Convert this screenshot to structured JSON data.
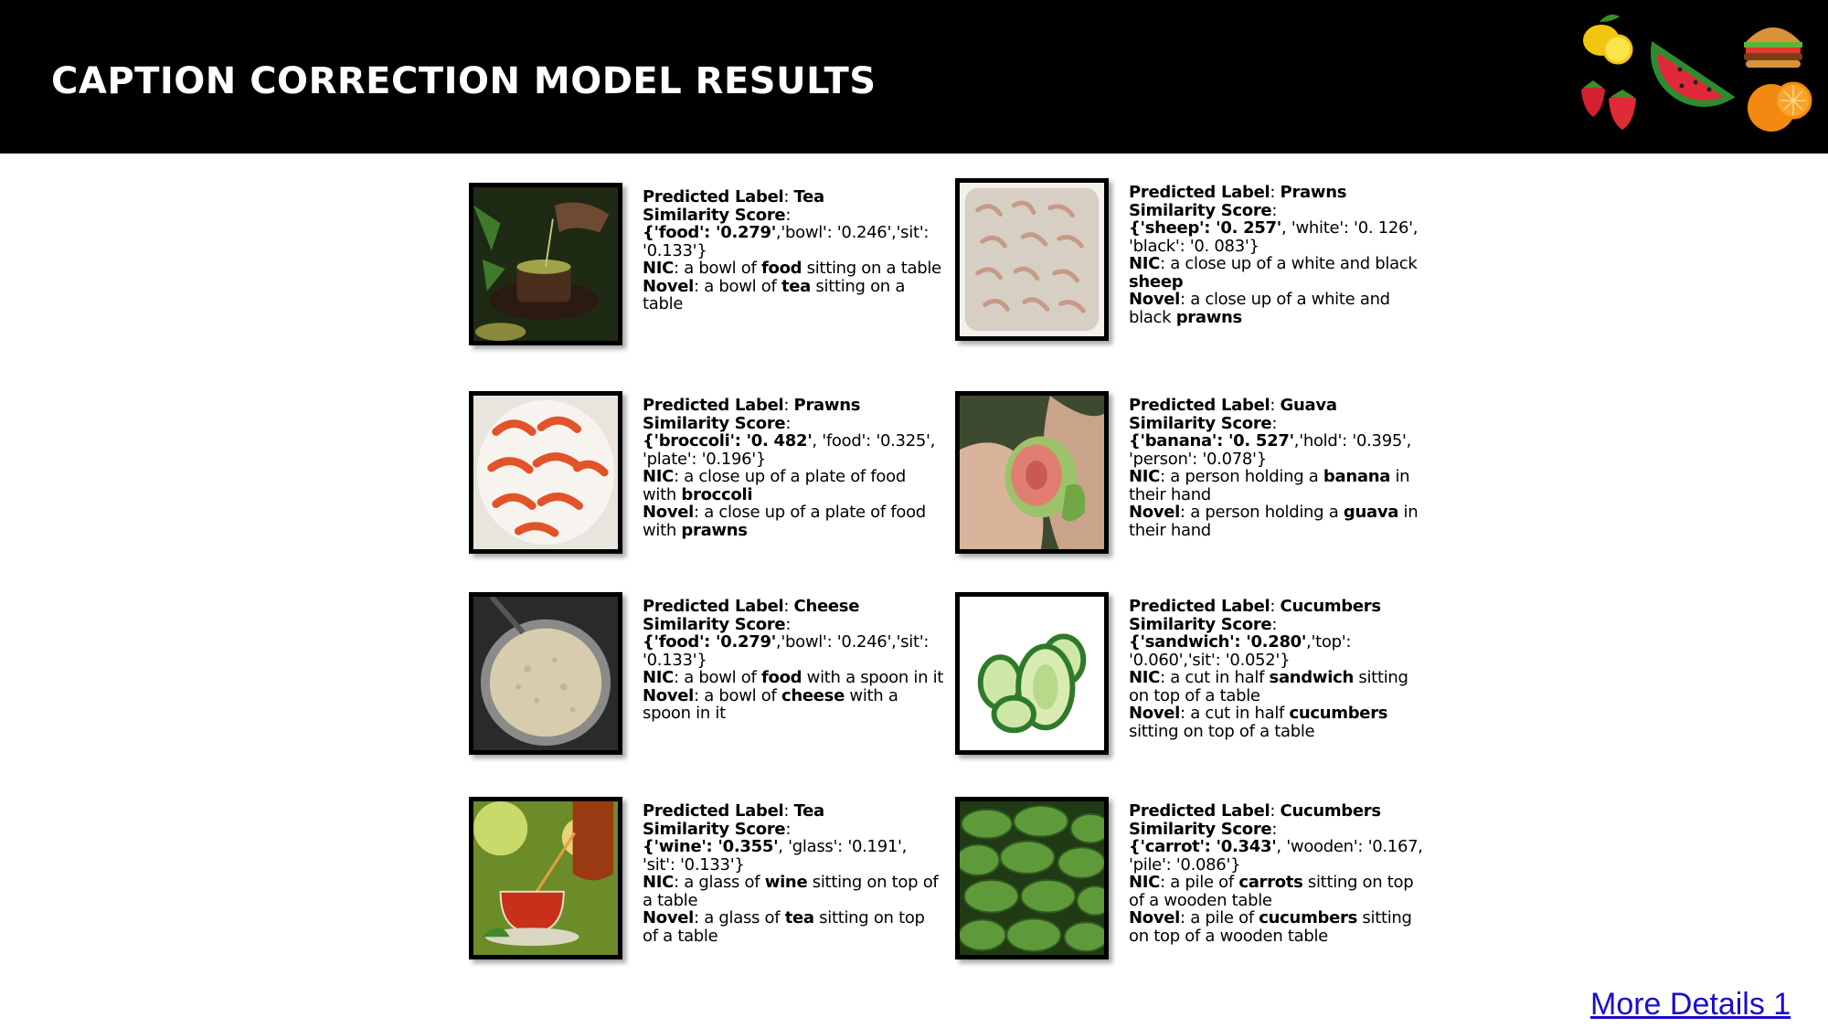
{
  "header": {
    "title": "CAPTION CORRECTION MODEL RESULTS"
  },
  "decor": {
    "fruit_icons": [
      "lemon-icon",
      "watermelon-icon",
      "burger-icon",
      "strawberry-icon",
      "orange-icon"
    ]
  },
  "common": {
    "predicted_label_prefix": "Predicted Label",
    "similarity_score_label": "Similarity Score",
    "nic_label": "NIC",
    "novel_label": "Novel",
    "colon": ":"
  },
  "results": [
    {
      "image_icon": "tea-image",
      "label": "Tea",
      "score_bold": "{'food': '0.279'",
      "score_rest": ",'bowl': '0.246','sit': '0.133'}",
      "nic_pre": "a bowl of ",
      "nic_word": "food",
      "nic_post": " sitting on a table",
      "novel_pre": "a bowl of ",
      "novel_word": "tea",
      "novel_post": " sitting on a table"
    },
    {
      "image_icon": "prawns-image",
      "label": "Prawns",
      "score_bold": "{'sheep': '0. 257'",
      "score_rest": ", 'white': '0. 126', 'black': '0. 083'}",
      "nic_pre": "a close up of a white and black ",
      "nic_word": "sheep",
      "nic_post": "",
      "novel_pre": "a close up of a white and black ",
      "novel_word": "prawns",
      "novel_post": ""
    },
    {
      "image_icon": "prawns-plate-image",
      "label": "Prawns",
      "score_bold": "{'broccoli': '0. 482'",
      "score_rest": ", 'food': '0.325', 'plate': '0.196'}",
      "nic_pre": "a close up of a plate of food with ",
      "nic_word": "broccoli",
      "nic_post": "",
      "novel_pre": "a close up of a plate of food with ",
      "novel_word": "prawns",
      "novel_post": ""
    },
    {
      "image_icon": "guava-image",
      "label": "Guava",
      "score_bold": "{'banana': '0. 527'",
      "score_rest": ",'hold': '0.395', 'person': '0.078'}",
      "nic_pre": "a person holding a ",
      "nic_word": "banana",
      "nic_post": " in their hand",
      "novel_pre": " a person holding a ",
      "novel_word": "guava",
      "novel_post": " in their hand"
    },
    {
      "image_icon": "cheese-image",
      "label": "Cheese",
      "score_bold": "{'food': '0.279'",
      "score_rest": ",'bowl': '0.246','sit': '0.133'}",
      "nic_pre": "a bowl of ",
      "nic_word": "food",
      "nic_post": " with a spoon in it",
      "novel_pre": "a bowl of ",
      "novel_word": "cheese",
      "novel_post": " with a spoon in it"
    },
    {
      "image_icon": "cucumbers-image",
      "label": "Cucumbers",
      "score_bold": "{'sandwich': '0.280'",
      "score_rest": ",'top': '0.060','sit': '0.052'}",
      "nic_pre": "a cut in half ",
      "nic_word": "sandwich",
      "nic_post": " sitting on top of a table",
      "novel_pre": "a cut in half ",
      "novel_word": "cucumbers",
      "novel_post": " sitting on top of a table"
    },
    {
      "image_icon": "tea-glass-image",
      "label": "Tea",
      "score_bold": "{'wine': '0.355'",
      "score_rest": ", 'glass': '0.191', 'sit': '0.133'}",
      "nic_pre": "a glass of ",
      "nic_word": "wine",
      "nic_post": " sitting on top of a table",
      "novel_pre": "a glass of ",
      "novel_word": "tea",
      "novel_post": " sitting on top of a table"
    },
    {
      "image_icon": "cucumber-pile-image",
      "label": "Cucumbers",
      "score_bold": "{'carrot': '0.343'",
      "score_rest": ", 'wooden': '0.167, 'pile': '0.086'}",
      "nic_pre": "a pile of ",
      "nic_word": "carrots",
      "nic_post": " sitting on top of a wooden table",
      "novel_pre": "a pile of ",
      "novel_word": "cucumbers",
      "novel_post": " sitting on top of a wooden table"
    }
  ],
  "footer": {
    "link_text": "More Details 1"
  }
}
